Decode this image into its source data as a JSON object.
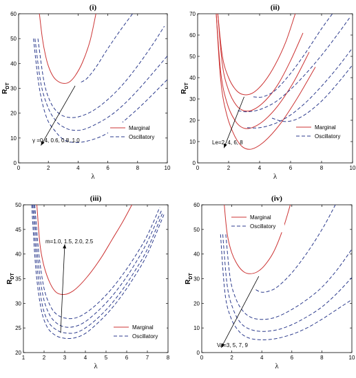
{
  "chart_data": [
    {
      "type": "line",
      "title": "(i)",
      "xlabel": "λ",
      "ylabel": "RDT",
      "xlim": [
        0,
        10
      ],
      "ylim": [
        0,
        60
      ],
      "xticks": [
        "0",
        "2",
        "4",
        "6",
        "8",
        "10"
      ],
      "yticks": [
        "0",
        "10",
        "20",
        "30",
        "40",
        "50",
        "60"
      ],
      "legend": {
        "position": "lower-right",
        "entries": [
          "Marginal",
          "Oscillatory"
        ]
      },
      "annotation": "γ =0.4, 0.6, 0.8, 1.0",
      "arrow": {
        "from": [
          3.8,
          31
        ],
        "to": [
          1.5,
          7
        ]
      },
      "series": [
        {
          "style": "marginal",
          "color": "#cc3333",
          "x": [
            1.4,
            1.6,
            1.8,
            2.0,
            2.3,
            2.6,
            3.0,
            3.4,
            3.8,
            4.3,
            4.8,
            5.2
          ],
          "y": [
            60,
            50,
            43.5,
            39,
            35,
            33,
            32,
            32.5,
            35,
            40.5,
            49,
            60
          ]
        },
        {
          "style": "oscillatory",
          "color": "#2b3a8c",
          "x": [
            4.2,
            4.6,
            5.2,
            6.0,
            6.8,
            7.6,
            8.0
          ],
          "y": [
            32.5,
            34,
            38.5,
            46,
            53,
            59.5,
            63
          ]
        },
        {
          "style": "oscillatory",
          "color": "#2b3a8c",
          "x": [
            1.3,
            1.7,
            2.1,
            2.6,
            3.2,
            4.0,
            5.0,
            6.0,
            7.0,
            8.0,
            9.0,
            9.8
          ],
          "y": [
            50,
            33,
            25,
            20.5,
            18.5,
            18.5,
            21,
            25.5,
            31.5,
            39,
            47.5,
            55
          ]
        },
        {
          "style": "oscillatory",
          "color": "#2b3a8c",
          "x": [
            1.1,
            1.5,
            2.0,
            2.5,
            3.0,
            3.6,
            4.4,
            5.5,
            6.5,
            7.5,
            8.5,
            10.0
          ],
          "y": [
            50,
            32,
            22,
            17,
            14.5,
            13.2,
            13.5,
            16.5,
            20.5,
            26,
            32.5,
            43
          ]
        },
        {
          "style": "oscillatory",
          "color": "#2b3a8c",
          "x": [
            1.0,
            1.4,
            1.9,
            2.5,
            3.0,
            3.6,
            4.4,
            5.5,
            6.5,
            7.5,
            8.5,
            10.0
          ],
          "y": [
            50,
            30,
            18,
            12.5,
            9.5,
            8.3,
            8.5,
            10.5,
            14,
            19,
            24.5,
            33.5
          ]
        }
      ]
    },
    {
      "type": "line",
      "title": "(ii)",
      "xlabel": "λ",
      "ylabel": "RDT",
      "xlim": [
        0,
        10
      ],
      "ylim": [
        0,
        70
      ],
      "xticks": [
        "0",
        "2",
        "4",
        "6",
        "8",
        "10"
      ],
      "yticks": [
        "0",
        "10",
        "20",
        "30",
        "40",
        "50",
        "60",
        "70"
      ],
      "legend": {
        "position": "lower-right",
        "entries": [
          "Marginal",
          "Oscillatory"
        ]
      },
      "annotation": "Le=2, 4, 6, 8",
      "arrow": {
        "from": [
          3.0,
          31
        ],
        "to": [
          1.7,
          7
        ]
      },
      "series": [
        {
          "style": "marginal",
          "color": "#cc3333",
          "x": [
            1.3,
            1.6,
            2.0,
            2.5,
            3.0,
            3.6,
            4.3,
            5.0,
            5.7,
            6.3
          ],
          "y": [
            70,
            50,
            40,
            34,
            32,
            33,
            38,
            46,
            57,
            70
          ]
        },
        {
          "style": "marginal",
          "color": "#cc3333",
          "x": [
            1.3,
            1.6,
            2.0,
            2.5,
            3.0,
            3.6,
            4.4,
            5.2,
            6.0,
            6.8
          ],
          "y": [
            70,
            46,
            34,
            27,
            24.5,
            25,
            29.5,
            37,
            48,
            61
          ]
        },
        {
          "style": "marginal",
          "color": "#cc3333",
          "x": [
            1.2,
            1.5,
            1.9,
            2.4,
            2.9,
            3.5,
            4.3,
            5.2,
            6.2,
            7.2
          ],
          "y": [
            70,
            42,
            28,
            20,
            16.5,
            16.5,
            20,
            27,
            38,
            52
          ]
        },
        {
          "style": "marginal",
          "color": "#cc3333",
          "x": [
            1.2,
            1.5,
            1.9,
            2.4,
            2.9,
            3.5,
            4.3,
            5.3,
            6.4,
            7.6
          ],
          "y": [
            70,
            38,
            22,
            12.5,
            7.5,
            6.5,
            10,
            18,
            30,
            45
          ]
        },
        {
          "style": "oscillatory",
          "color": "#2b3a8c",
          "x": [
            3.6,
            4.2,
            5.0,
            6.0,
            7.0,
            8.0,
            8.7
          ],
          "y": [
            31,
            31,
            34,
            42,
            52,
            63,
            70
          ]
        },
        {
          "style": "oscillatory",
          "color": "#2b3a8c",
          "x": [
            2.6,
            3.2,
            4.0,
            5.0,
            6.0,
            7.0,
            8.0,
            9.0,
            9.8
          ],
          "y": [
            24.5,
            24,
            25,
            28.5,
            34.5,
            42,
            50.5,
            60,
            68
          ]
        },
        {
          "style": "oscillatory",
          "color": "#2b3a8c",
          "x": [
            3.2,
            4.0,
            5.0,
            6.0,
            7.0,
            8.0,
            9.0,
            10.0
          ],
          "y": [
            16.5,
            16.5,
            18.5,
            22.5,
            28.5,
            36,
            44.5,
            54
          ]
        },
        {
          "style": "oscillatory",
          "color": "#2b3a8c",
          "x": [
            4.8,
            5.5,
            6.2,
            7.0,
            8.0,
            9.0,
            10.0
          ],
          "y": [
            21,
            19.5,
            20,
            23,
            29,
            37,
            46
          ]
        }
      ]
    },
    {
      "type": "line",
      "title": "(iii)",
      "xlabel": "λ",
      "ylabel": "RDT",
      "xlim": [
        1,
        8
      ],
      "ylim": [
        20,
        50
      ],
      "xticks": [
        "1",
        "2",
        "3",
        "4",
        "5",
        "6",
        "7",
        "8"
      ],
      "yticks": [
        "20",
        "25",
        "30",
        "35",
        "40",
        "45",
        "50"
      ],
      "legend": {
        "position": "lower-right",
        "entries": [
          "Marginal",
          "Oscillatory"
        ]
      },
      "annotation": "m=1.0, 1.5, 2.0, 2.5",
      "arrow": {
        "from": [
          2.8,
          24
        ],
        "to": [
          3.0,
          42
        ]
      },
      "series": [
        {
          "style": "marginal",
          "color": "#cc3333",
          "x": [
            1.65,
            1.8,
            2.0,
            2.3,
            2.6,
            3.0,
            3.4,
            3.8,
            4.3,
            4.8,
            5.3,
            5.8,
            6.25
          ],
          "y": [
            50,
            42,
            37.5,
            34,
            32.2,
            31.8,
            32.5,
            34,
            36.5,
            39.5,
            43,
            46.5,
            50
          ]
        },
        {
          "style": "oscillatory",
          "color": "#2b3a8c",
          "x": [
            1.55,
            1.75,
            2.0,
            2.3,
            2.6,
            3.0,
            3.5,
            4.0,
            4.6,
            5.2,
            5.8,
            6.4,
            7.0,
            7.6
          ],
          "y": [
            50,
            40,
            33,
            29.5,
            27.8,
            27,
            27,
            28,
            30,
            32.6,
            35.8,
            39.5,
            43.8,
            49.5
          ]
        },
        {
          "style": "oscillatory",
          "color": "#2b3a8c",
          "x": [
            1.5,
            1.7,
            1.95,
            2.25,
            2.6,
            3.0,
            3.5,
            4.0,
            4.6,
            5.2,
            5.8,
            6.4,
            7.0,
            7.7
          ],
          "y": [
            50,
            39,
            31.5,
            27.8,
            26,
            25.2,
            25.3,
            26.3,
            28.4,
            31,
            34.2,
            38,
            42.5,
            49
          ]
        },
        {
          "style": "oscillatory",
          "color": "#2b3a8c",
          "x": [
            1.45,
            1.65,
            1.9,
            2.2,
            2.6,
            3.0,
            3.5,
            4.0,
            4.6,
            5.2,
            5.8,
            6.4,
            7.0,
            7.75
          ],
          "y": [
            50,
            38,
            30,
            26.3,
            24.6,
            24,
            24,
            25,
            27,
            29.6,
            32.8,
            36.6,
            41,
            48.5
          ]
        },
        {
          "style": "oscillatory",
          "color": "#2b3a8c",
          "x": [
            1.4,
            1.6,
            1.85,
            2.15,
            2.55,
            3.0,
            3.5,
            4.0,
            4.6,
            5.2,
            5.8,
            6.4,
            7.0,
            7.8
          ],
          "y": [
            50,
            37,
            29,
            25.2,
            23.5,
            22.9,
            23,
            23.9,
            26,
            28.6,
            31.8,
            35.6,
            40,
            48
          ]
        }
      ]
    },
    {
      "type": "line",
      "title": "(iv)",
      "xlabel": "λ",
      "ylabel": "RDT",
      "xlim": [
        0,
        10
      ],
      "ylim": [
        0,
        60
      ],
      "xticks": [
        "0",
        "2",
        "4",
        "6",
        "8",
        "10"
      ],
      "yticks": [
        "0",
        "10",
        "20",
        "30",
        "40",
        "50",
        "60"
      ],
      "legend": {
        "position": "top-left",
        "entries": [
          "Marginal",
          "Oscillatory"
        ]
      },
      "annotation": "Va=3, 5, 7, 9",
      "arrow": {
        "from": [
          3.8,
          31
        ],
        "to": [
          1.3,
          2
        ]
      },
      "series": [
        {
          "style": "marginal",
          "color": "#cc3333",
          "x": [
            1.5,
            1.7,
            2.0,
            2.4,
            2.8,
            3.2,
            3.7,
            4.2,
            4.8,
            5.4,
            5.9
          ],
          "y": [
            60,
            48,
            40.5,
            35.5,
            32.8,
            32,
            32.8,
            35.5,
            41,
            50,
            60
          ]
        },
        {
          "style": "oscillatory",
          "color": "#2b3a8c",
          "x": [
            3.6,
            4.0,
            4.5,
            5.0,
            5.8,
            6.6,
            7.4,
            8.2,
            8.9
          ],
          "y": [
            25.5,
            24.5,
            25,
            26.5,
            31,
            37,
            44,
            52,
            60
          ]
        },
        {
          "style": "oscillatory",
          "color": "#2b3a8c",
          "x": [
            1.6,
            1.9,
            2.3,
            2.8,
            3.4,
            4.2,
            5.0,
            6.0,
            7.0,
            8.0,
            9.0,
            10.0
          ],
          "y": [
            48,
            30,
            21.5,
            16.5,
            14,
            13.5,
            14.5,
            17.5,
            21.5,
            26.5,
            33.5,
            42
          ]
        },
        {
          "style": "oscillatory",
          "color": "#2b3a8c",
          "x": [
            1.4,
            1.7,
            2.1,
            2.6,
            3.2,
            4.0,
            5.0,
            6.0,
            7.0,
            8.0,
            9.0,
            10.0
          ],
          "y": [
            48,
            27,
            17.5,
            12,
            9.5,
            8.6,
            9.2,
            11.3,
            14.5,
            18.5,
            24,
            30.5
          ]
        },
        {
          "style": "oscillatory",
          "color": "#2b3a8c",
          "x": [
            1.25,
            1.55,
            1.95,
            2.5,
            3.1,
            3.9,
            4.9,
            6.0,
            7.0,
            8.0,
            9.0,
            10.0
          ],
          "y": [
            48,
            24,
            14,
            8.5,
            6,
            5.2,
            5.6,
            7.4,
            10,
            13.5,
            17.5,
            21.5
          ]
        }
      ]
    }
  ]
}
